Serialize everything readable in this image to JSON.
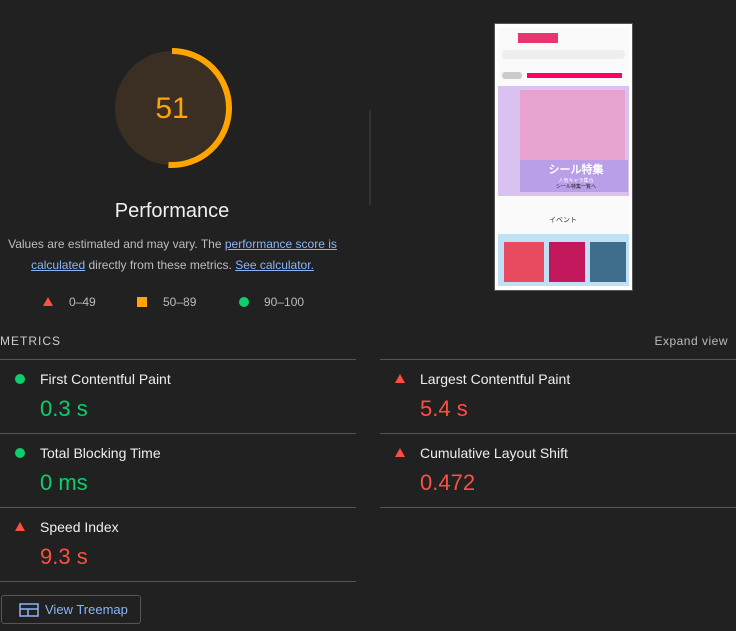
{
  "gauge": {
    "score": 51,
    "title": "Performance"
  },
  "description": {
    "text1": "Values are estimated and may vary. The ",
    "link1": "performance score is calculated",
    "text2": " directly from these metrics. ",
    "link2": "See calculator."
  },
  "legend": [
    "0–49",
    "50–89",
    "90–100"
  ],
  "screenshot": {
    "banner": "シール特集",
    "sub": "人気キャラ集合",
    "cta": "シール特集一覧へ",
    "section": "イベント"
  },
  "metrics": {
    "heading": "METRICS",
    "expand": "Expand view",
    "items": [
      {
        "name": "First Contentful Paint",
        "value": "0.3 s",
        "rating": "pass"
      },
      {
        "name": "Largest Contentful Paint",
        "value": "5.4 s",
        "rating": "fail"
      },
      {
        "name": "Total Blocking Time",
        "value": "0 ms",
        "rating": "pass"
      },
      {
        "name": "Cumulative Layout Shift",
        "value": "0.472",
        "rating": "fail"
      },
      {
        "name": "Speed Index",
        "value": "9.3 s",
        "rating": "fail"
      }
    ]
  },
  "button": "View Treemap"
}
